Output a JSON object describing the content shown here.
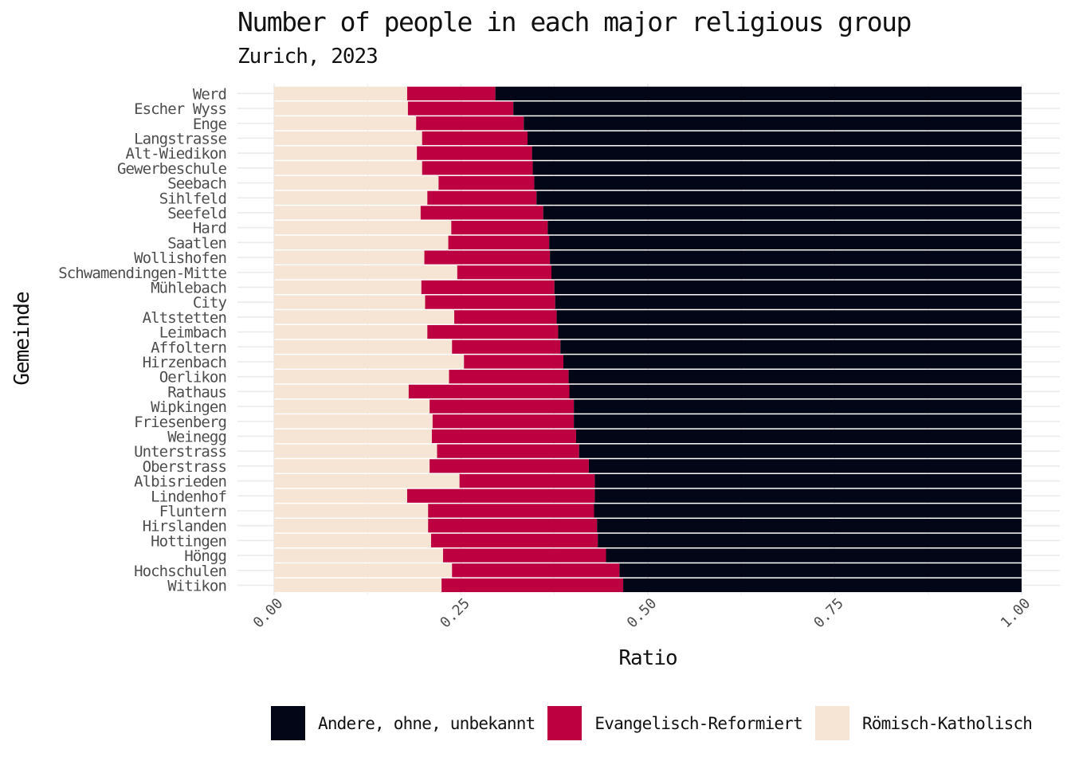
{
  "chart_data": {
    "type": "bar",
    "orientation": "horizontal",
    "stacked": true,
    "title": "Number of people in each major religious group",
    "subtitle": "Zurich, 2023",
    "xlabel": "Ratio",
    "ylabel": "Gemeinde",
    "xlim": [
      0,
      1
    ],
    "x_ticks": [
      "0.00",
      "0.25",
      "0.50",
      "0.75",
      "1.00"
    ],
    "grid": true,
    "legend_position": "bottom",
    "categories": [
      "Werd",
      "Escher Wyss",
      "Enge",
      "Langstrasse",
      "Alt-Wiedikon",
      "Gewerbeschule",
      "Seebach",
      "Sihlfeld",
      "Seefeld",
      "Hard",
      "Saatlen",
      "Wollishofen",
      "Schwamendingen-Mitte",
      "Mühlebach",
      "City",
      "Altstetten",
      "Leimbach",
      "Affoltern",
      "Hirzenbach",
      "Oerlikon",
      "Rathaus",
      "Wipkingen",
      "Friesenberg",
      "Weinegg",
      "Unterstrass",
      "Oberstrass",
      "Albisrieden",
      "Lindenhof",
      "Fluntern",
      "Hirslanden",
      "Hottingen",
      "Höngg",
      "Hochschulen",
      "Witikon"
    ],
    "series": [
      {
        "name": "Römisch-Katholisch",
        "color": "#f6e5d4",
        "values": [
          0.178,
          0.179,
          0.19,
          0.198,
          0.191,
          0.198,
          0.22,
          0.205,
          0.196,
          0.237,
          0.233,
          0.201,
          0.245,
          0.197,
          0.202,
          0.241,
          0.205,
          0.238,
          0.254,
          0.234,
          0.18,
          0.208,
          0.212,
          0.211,
          0.218,
          0.208,
          0.248,
          0.178,
          0.206,
          0.206,
          0.21,
          0.226,
          0.238,
          0.224
        ]
      },
      {
        "name": "Evangelisch-Reformiert",
        "color": "#bd003f",
        "values": [
          0.118,
          0.141,
          0.144,
          0.141,
          0.154,
          0.148,
          0.128,
          0.146,
          0.164,
          0.129,
          0.135,
          0.168,
          0.126,
          0.178,
          0.174,
          0.137,
          0.175,
          0.145,
          0.133,
          0.16,
          0.215,
          0.193,
          0.189,
          0.193,
          0.19,
          0.213,
          0.181,
          0.251,
          0.222,
          0.226,
          0.223,
          0.218,
          0.224,
          0.243
        ]
      },
      {
        "name": "Andere, ohne, unbekannt",
        "color": "#030616",
        "values": [
          0.704,
          0.68,
          0.666,
          0.661,
          0.655,
          0.654,
          0.652,
          0.649,
          0.64,
          0.634,
          0.632,
          0.631,
          0.629,
          0.625,
          0.624,
          0.622,
          0.62,
          0.617,
          0.613,
          0.606,
          0.605,
          0.599,
          0.599,
          0.596,
          0.592,
          0.579,
          0.571,
          0.571,
          0.572,
          0.568,
          0.567,
          0.556,
          0.538,
          0.533
        ]
      }
    ],
    "legend_order": [
      "Andere, ohne, unbekannt",
      "Evangelisch-Reformiert",
      "Römisch-Katholisch"
    ]
  }
}
